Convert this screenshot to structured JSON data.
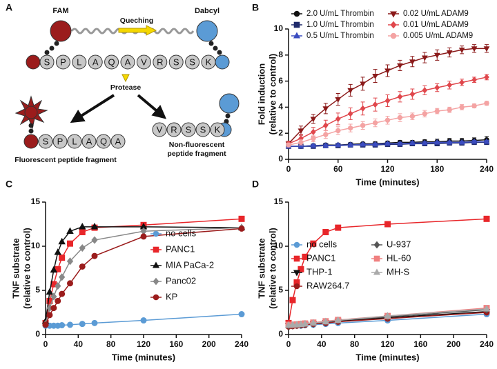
{
  "diagram": {
    "label": "A",
    "fam": "FAM",
    "dabcyl": "Dabcyl",
    "quenching": "Queching",
    "protease": "Protease",
    "peptide": [
      "S",
      "P",
      "L",
      "A",
      "Q",
      "A",
      "V",
      "R",
      "S",
      "S",
      "K"
    ],
    "fragment_left": {
      "residues": [
        "S",
        "P",
        "L",
        "A",
        "Q",
        "A"
      ],
      "caption": "Fluorescent peptide fragment"
    },
    "fragment_right": {
      "residues": [
        "V",
        "R",
        "S",
        "S",
        "K"
      ],
      "caption": [
        "Non-fluorescent",
        "peptide fragment"
      ]
    }
  },
  "chart_data": [
    {
      "type": "line",
      "panel_label": "B",
      "xlabel": "Time (minutes)",
      "ylabel": [
        "Fold induction",
        "(relative to control)"
      ],
      "x": [
        0,
        15,
        30,
        45,
        60,
        75,
        90,
        105,
        120,
        135,
        150,
        165,
        180,
        195,
        210,
        225,
        240
      ],
      "xlim": [
        0,
        240
      ],
      "xticks": [
        0,
        60,
        120,
        180,
        240
      ],
      "ylim": [
        0,
        10
      ],
      "yticks": [
        0,
        2,
        4,
        6,
        8,
        10
      ],
      "legend": {
        "position": "upper left",
        "columns": 2
      },
      "series": [
        {
          "name": "2.0 U/mL Thrombin",
          "color": "#111111",
          "marker": "circle",
          "values": [
            1.0,
            1.0,
            1.05,
            1.1,
            1.1,
            1.15,
            1.2,
            1.2,
            1.25,
            1.3,
            1.3,
            1.35,
            1.35,
            1.4,
            1.4,
            1.45,
            1.5
          ],
          "errors": [
            0.1,
            0.1,
            0.1,
            0.1,
            0.1,
            0.1,
            0.1,
            0.15,
            0.15,
            0.15,
            0.15,
            0.15,
            0.2,
            0.2,
            0.2,
            0.2,
            0.25
          ]
        },
        {
          "name": "1.0 U/mL Thrombin",
          "color": "#1f2a6b",
          "marker": "square",
          "values": [
            1.0,
            1.0,
            1.0,
            1.05,
            1.05,
            1.1,
            1.1,
            1.1,
            1.15,
            1.15,
            1.2,
            1.2,
            1.2,
            1.25,
            1.25,
            1.3,
            1.3
          ],
          "errors": [
            0.1,
            0.1,
            0.1,
            0.1,
            0.1,
            0.1,
            0.1,
            0.1,
            0.1,
            0.1,
            0.1,
            0.1,
            0.1,
            0.1,
            0.1,
            0.1,
            0.1
          ]
        },
        {
          "name": "0.5 U/mL Thrombin",
          "color": "#3b4cc0",
          "marker": "triangle",
          "values": [
            1.0,
            1.0,
            1.05,
            1.05,
            1.1,
            1.1,
            1.15,
            1.15,
            1.2,
            1.2,
            1.25,
            1.25,
            1.3,
            1.3,
            1.3,
            1.35,
            1.35
          ],
          "errors": [
            0.1,
            0.1,
            0.1,
            0.1,
            0.1,
            0.1,
            0.1,
            0.1,
            0.1,
            0.1,
            0.1,
            0.1,
            0.1,
            0.1,
            0.1,
            0.1,
            0.1
          ]
        },
        {
          "name": "0.02 U/mL ADAM9",
          "color": "#8b1a1a",
          "marker": "triangle-down",
          "values": [
            1.2,
            2.2,
            3.1,
            3.9,
            4.6,
            5.3,
            5.8,
            6.4,
            6.8,
            7.2,
            7.5,
            7.8,
            8.0,
            8.2,
            8.4,
            8.5,
            8.5
          ],
          "errors": [
            0.2,
            0.35,
            0.35,
            0.4,
            0.45,
            0.45,
            0.5,
            0.5,
            0.45,
            0.4,
            0.4,
            0.4,
            0.4,
            0.35,
            0.3,
            0.3,
            0.3
          ]
        },
        {
          "name": "0.01 U/mL ADAM9",
          "color": "#e0474c",
          "marker": "diamond",
          "values": [
            1.2,
            1.6,
            2.1,
            2.6,
            3.1,
            3.5,
            3.9,
            4.2,
            4.5,
            4.8,
            5.0,
            5.3,
            5.5,
            5.7,
            5.9,
            6.1,
            6.3
          ],
          "errors": [
            0.2,
            0.3,
            0.35,
            0.4,
            0.45,
            0.45,
            0.5,
            0.5,
            0.45,
            0.4,
            0.4,
            0.35,
            0.3,
            0.3,
            0.25,
            0.2,
            0.2
          ]
        },
        {
          "name": "0.005 U/mL ADAM9",
          "color": "#f4a3a3",
          "marker": "circle",
          "values": [
            1.1,
            1.3,
            1.6,
            1.9,
            2.2,
            2.4,
            2.6,
            2.8,
            3.0,
            3.2,
            3.3,
            3.5,
            3.7,
            3.8,
            4.0,
            4.1,
            4.3
          ],
          "errors": [
            0.15,
            0.2,
            0.25,
            0.3,
            0.3,
            0.3,
            0.3,
            0.3,
            0.3,
            0.3,
            0.25,
            0.25,
            0.2,
            0.2,
            0.2,
            0.15,
            0.15
          ]
        }
      ]
    },
    {
      "type": "line",
      "panel_label": "C",
      "xlabel": "Time (minutes)",
      "ylabel": [
        "TNF substrate",
        "(relative to control)"
      ],
      "x": [
        0,
        5,
        10,
        15,
        20,
        30,
        45,
        60,
        120,
        240
      ],
      "xlim": [
        0,
        240
      ],
      "xticks": [
        0,
        40,
        80,
        120,
        160,
        200,
        240
      ],
      "ylim": [
        0,
        15
      ],
      "yticks": [
        0,
        5,
        10,
        15
      ],
      "legend": {
        "position": "center right",
        "columns": 1
      },
      "series": [
        {
          "name": "no cells",
          "color": "#5b9bd5",
          "marker": "circle",
          "values": [
            1.0,
            1.0,
            1.0,
            1.0,
            1.05,
            1.1,
            1.2,
            1.3,
            1.6,
            2.3
          ]
        },
        {
          "name": "PANC1",
          "color": "#e8262a",
          "marker": "square",
          "values": [
            1.3,
            3.8,
            5.7,
            7.4,
            8.7,
            10.3,
            11.6,
            12.1,
            12.4,
            13.1
          ]
        },
        {
          "name": "MIA PaCa-2",
          "color": "#111111",
          "marker": "triangle",
          "values": [
            1.5,
            4.8,
            7.3,
            9.3,
            10.5,
            11.7,
            12.2,
            12.2,
            12.2,
            12.1
          ]
        },
        {
          "name": "Panc02",
          "color": "#888888",
          "marker": "diamond",
          "values": [
            1.2,
            3.0,
            4.3,
            5.5,
            6.5,
            8.3,
            9.8,
            10.7,
            11.7,
            12.1
          ]
        },
        {
          "name": "KP",
          "color": "#9b1c1c",
          "marker": "circle",
          "values": [
            1.1,
            2.2,
            3.0,
            3.8,
            4.6,
            5.8,
            7.7,
            8.9,
            11.1,
            12.0
          ]
        }
      ]
    },
    {
      "type": "line",
      "panel_label": "D",
      "xlabel": "Time (minutes)",
      "ylabel": [
        "TNF substrate",
        "(relative to control)"
      ],
      "x": [
        0,
        5,
        10,
        15,
        20,
        30,
        45,
        60,
        120,
        240
      ],
      "xlim": [
        0,
        240
      ],
      "xticks": [
        0,
        40,
        80,
        120,
        160,
        200,
        240
      ],
      "ylim": [
        0,
        15
      ],
      "yticks": [
        0,
        5,
        10,
        15
      ],
      "legend": {
        "position": "upper right",
        "columns": 2
      },
      "series": [
        {
          "name": "no cells",
          "color": "#5b9bd5",
          "marker": "circle",
          "values": [
            1.0,
            1.0,
            1.0,
            1.0,
            1.05,
            1.1,
            1.2,
            1.3,
            1.6,
            2.3
          ]
        },
        {
          "name": "PANC1",
          "color": "#e8262a",
          "marker": "square",
          "values": [
            1.3,
            3.9,
            5.9,
            7.4,
            8.8,
            10.3,
            11.6,
            12.1,
            12.5,
            13.1
          ]
        },
        {
          "name": "THP-1",
          "color": "#111111",
          "marker": "triangle-down",
          "values": [
            1.0,
            1.0,
            1.05,
            1.1,
            1.15,
            1.2,
            1.35,
            1.5,
            1.9,
            2.6
          ]
        },
        {
          "name": "RAW264.7",
          "color": "#9b1c1c",
          "marker": "circle",
          "values": [
            0.9,
            0.95,
            1.0,
            1.05,
            1.1,
            1.2,
            1.3,
            1.45,
            1.8,
            2.5
          ]
        },
        {
          "name": "U-937",
          "color": "#555555",
          "marker": "diamond",
          "values": [
            1.0,
            1.05,
            1.1,
            1.15,
            1.2,
            1.3,
            1.45,
            1.6,
            2.0,
            2.8
          ]
        },
        {
          "name": "HL-60",
          "color": "#f08080",
          "marker": "square",
          "values": [
            1.1,
            1.1,
            1.15,
            1.2,
            1.25,
            1.35,
            1.5,
            1.65,
            2.1,
            3.0
          ]
        },
        {
          "name": "MH-S",
          "color": "#aaaaaa",
          "marker": "triangle",
          "values": [
            1.05,
            1.1,
            1.1,
            1.15,
            1.2,
            1.3,
            1.45,
            1.6,
            2.1,
            2.9
          ]
        }
      ]
    }
  ]
}
